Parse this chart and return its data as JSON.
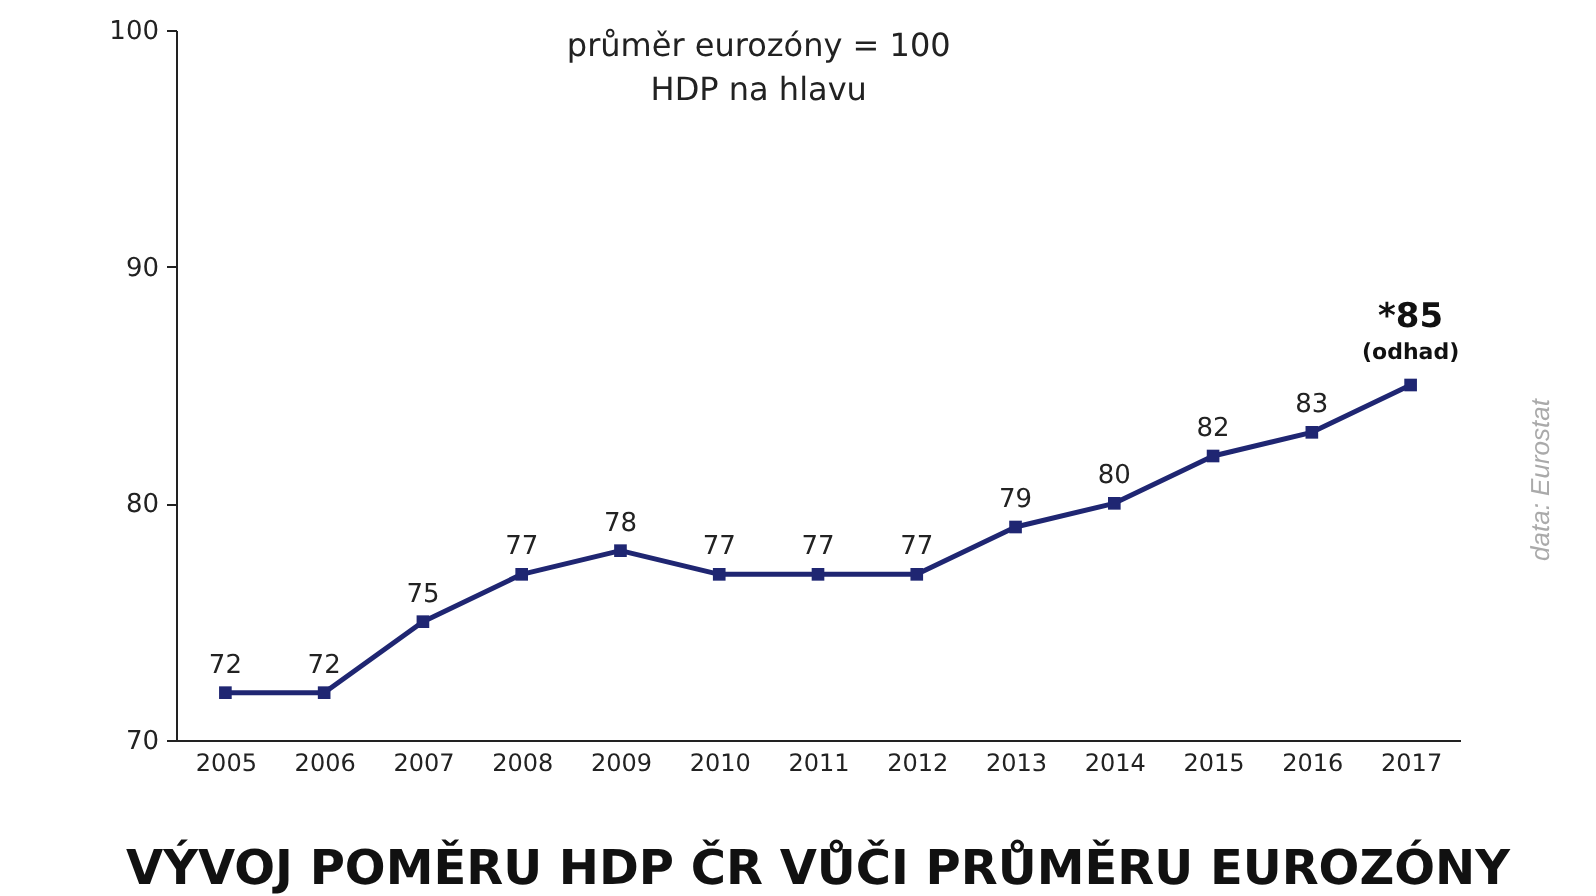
{
  "chart_data": {
    "type": "line",
    "title": "VÝVOJ POMĚRU HDP ČR VŮČI PRŮMĚRU EUROZÓNY",
    "categories": [
      "2005",
      "2006",
      "2007",
      "2008",
      "2009",
      "2010",
      "2011",
      "2012",
      "2013",
      "2014",
      "2015",
      "2016",
      "2017"
    ],
    "series": [
      {
        "color": "#1f2672",
        "values": [
          72,
          72,
          75,
          77,
          78,
          77,
          77,
          77,
          79,
          80,
          82,
          83,
          85
        ]
      }
    ],
    "value_labels": [
      "72",
      "72",
      "75",
      "77",
      "78",
      "77",
      "77",
      "77",
      "79",
      "80",
      "82",
      "83",
      "*85"
    ],
    "ylim": [
      70,
      100
    ],
    "yticks": [
      70,
      80,
      90,
      100
    ],
    "marker": "square",
    "line_style": "solid",
    "annotations": [
      "průměr eurozóny = 100",
      "HDP na hlavu",
      {
        "text": "(odhad)",
        "x": "2017",
        "y": 85
      },
      "data: Eurostat"
    ]
  }
}
